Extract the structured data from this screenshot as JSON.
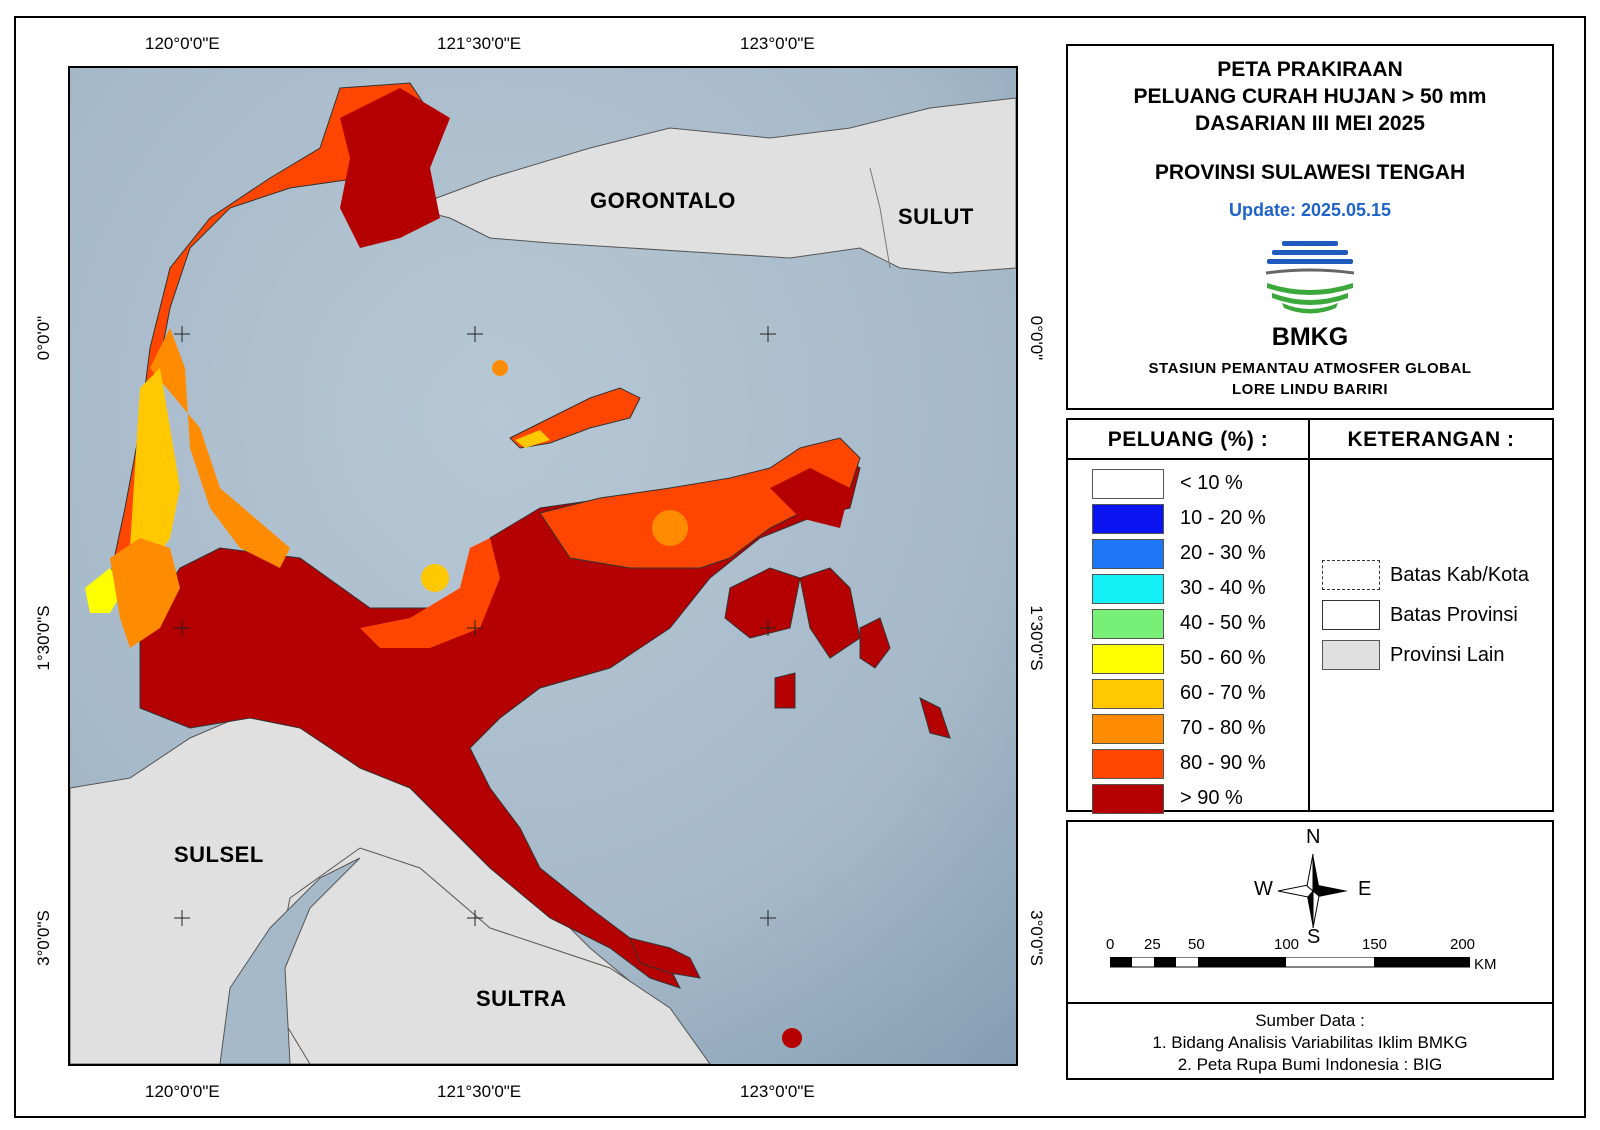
{
  "title": {
    "line1": "PETA PRAKIRAAN",
    "line2": "PELUANG CURAH HUJAN > 50 mm",
    "line3": "DASARIAN III MEI 2025",
    "province": "PROVINSI SULAWESI TENGAH",
    "update": "Update: 2025.05.15",
    "agency": "BMKG",
    "station1": "STASIUN PEMANTAU ATMOSFER GLOBAL",
    "station2": "LORE LINDU BARIRI"
  },
  "coords": {
    "top": [
      "120°0'0\"E",
      "121°30'0\"E",
      "123°0'0\"E"
    ],
    "bottom": [
      "120°0'0\"E",
      "121°30'0\"E",
      "123°0'0\"E"
    ],
    "left": [
      "0°0'0\"",
      "1°30'0\"S",
      "3°0'0\"S"
    ],
    "right": [
      "0°0'0\"",
      "1°30'0\"S",
      "3°0'0\"S"
    ]
  },
  "regions": {
    "gorontalo": "GORONTALO",
    "sulut": "SULUT",
    "sulsel": "SULSEL",
    "sultra": "SULTRA"
  },
  "legend": {
    "heading": "PELUANG (%) :",
    "items": [
      {
        "label": "< 10 %",
        "color": "#ffffff"
      },
      {
        "label": "10 - 20 %",
        "color": "#0a14f0"
      },
      {
        "label": "20 - 30 %",
        "color": "#1e78f5"
      },
      {
        "label": "30 - 40 %",
        "color": "#14f0f5"
      },
      {
        "label": "40 - 50 %",
        "color": "#78f078"
      },
      {
        "label": "50 - 60 %",
        "color": "#ffff00"
      },
      {
        "label": "60 - 70 %",
        "color": "#ffc800"
      },
      {
        "label": "70 - 80 %",
        "color": "#ff8c00"
      },
      {
        "label": "80 - 90 %",
        "color": "#ff4600"
      },
      {
        "label": "> 90 %",
        "color": "#b40000"
      }
    ]
  },
  "keterangan": {
    "heading": "KETERANGAN :",
    "items": [
      "Batas Kab/Kota",
      "Batas Provinsi",
      "Provinsi Lain"
    ]
  },
  "compass": {
    "n": "N",
    "s": "S",
    "e": "E",
    "w": "W"
  },
  "scale": {
    "ticks": [
      "0",
      "25",
      "50",
      "100",
      "150",
      "200"
    ],
    "unit": "KM"
  },
  "source": {
    "heading": "Sumber Data :",
    "line1": "1. Bidang Analisis Variabilitas Iklim BMKG",
    "line2": "2. Peta Rupa Bumi Indonesia : BIG"
  },
  "colors": {
    "sea": "#a9bccb",
    "other_province": "#e0e0e0",
    "dark_red": "#b40000",
    "red_orange": "#ff4600",
    "orange": "#ff8c00",
    "amber": "#ffc800"
  }
}
